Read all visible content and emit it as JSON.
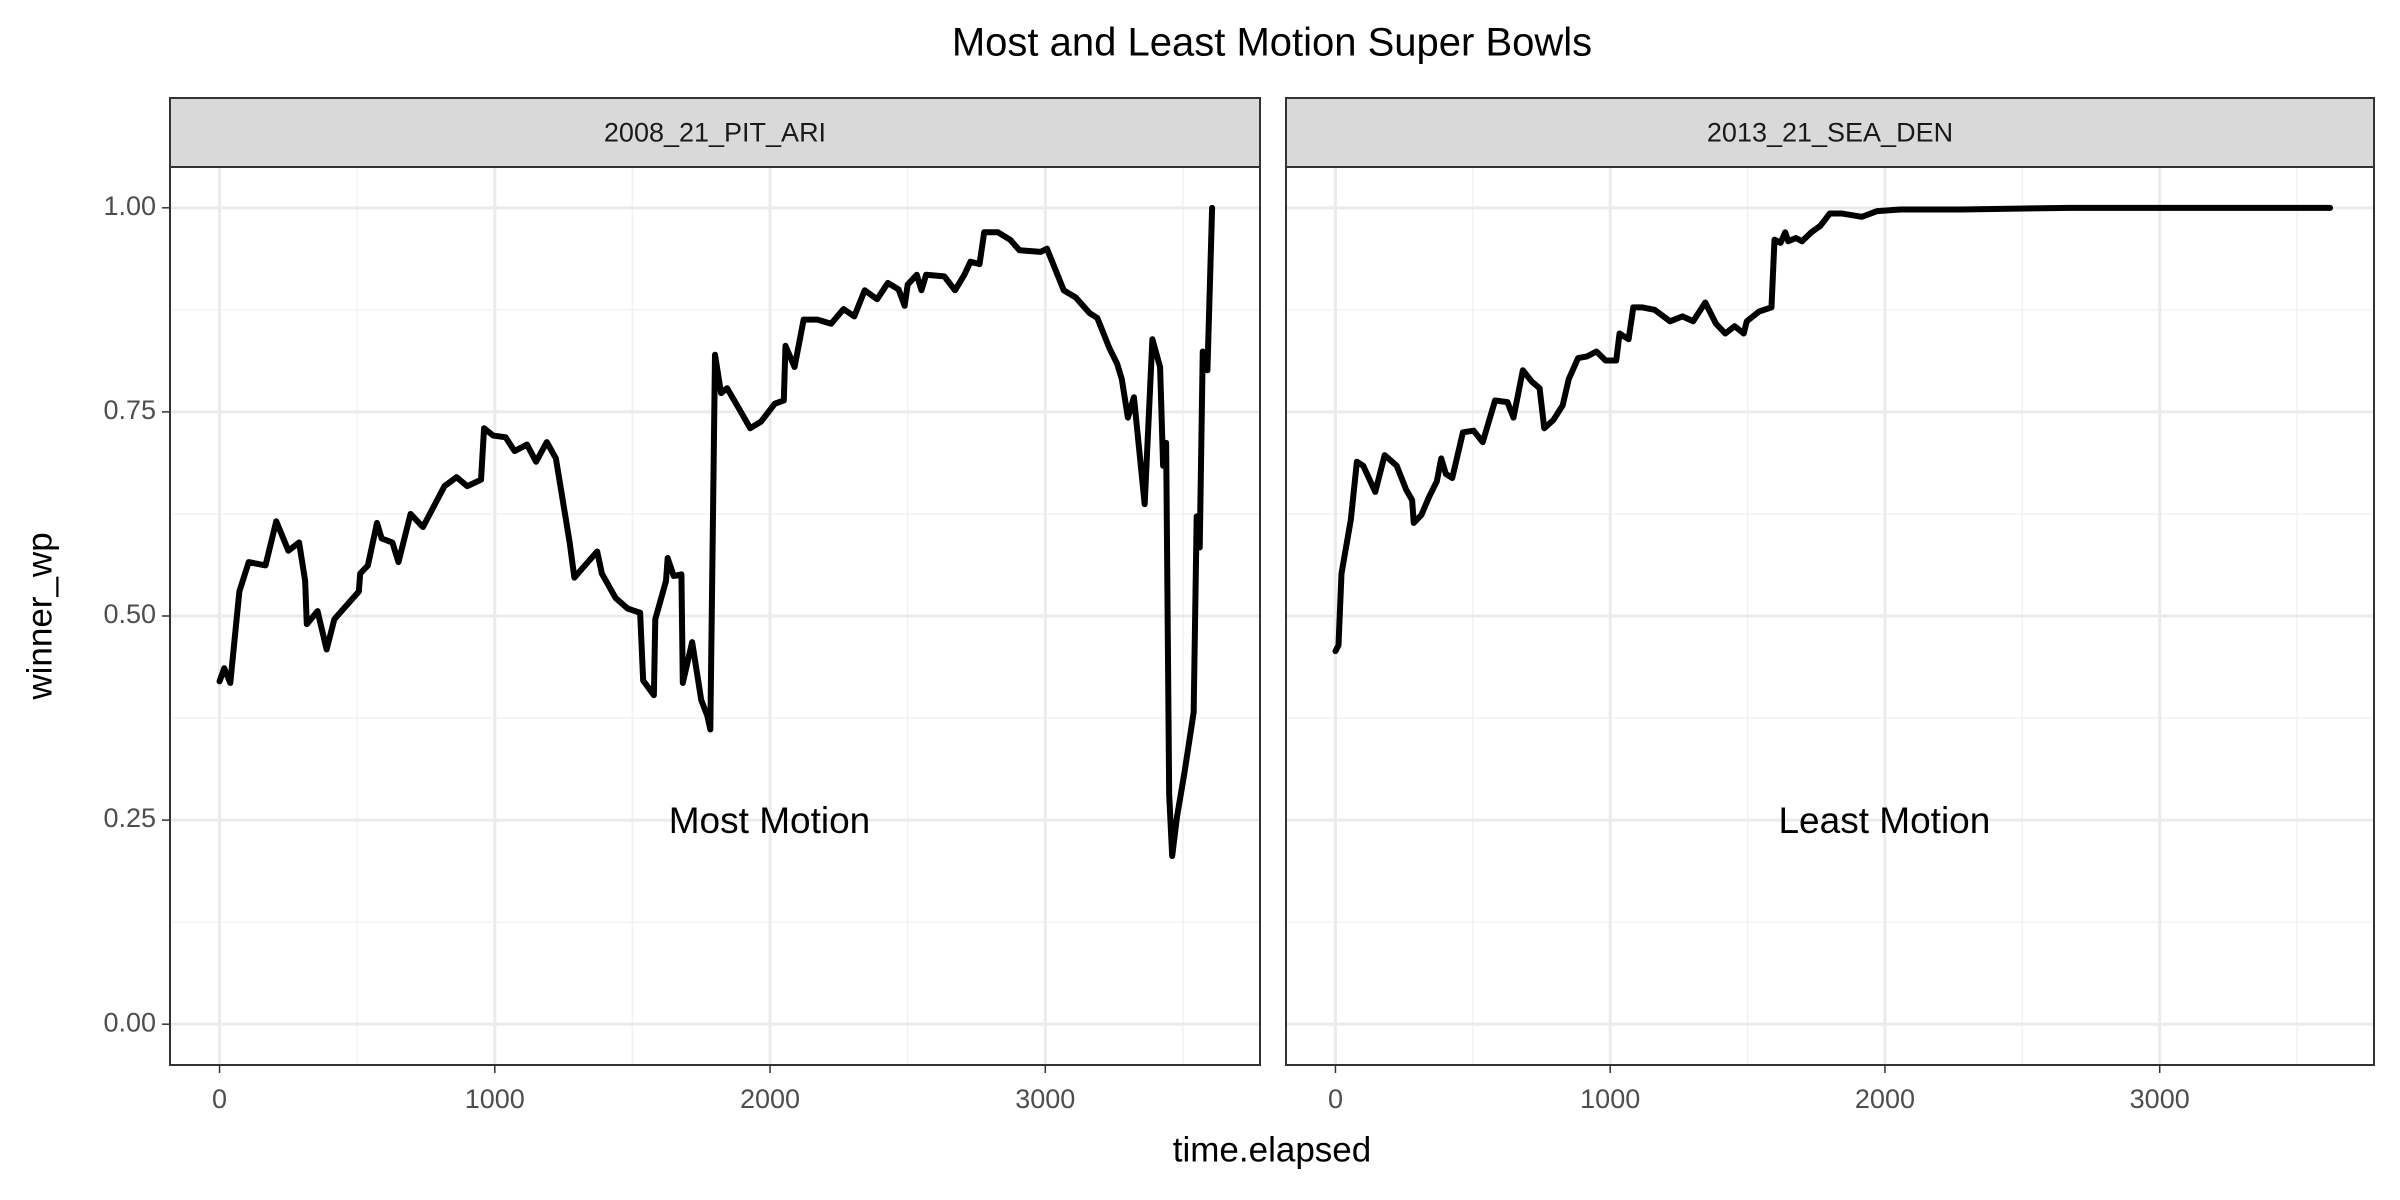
{
  "title": "Most and Least Motion Super Bowls",
  "x_label": "time.elapsed",
  "y_label": "winner_wp",
  "chart_data": [
    {
      "type": "line",
      "facet": "2008_21_PIT_ARI",
      "annotation": "Most Motion",
      "color": "#000000",
      "grid": true,
      "xlim": [
        -180,
        3780
      ],
      "xticks": [
        0,
        1000,
        2000,
        3000
      ],
      "ylim": [
        -0.05,
        1.05
      ],
      "yticks": [
        {
          "value": 0,
          "label": "0.00"
        },
        {
          "value": 0.25,
          "label": "0.25"
        },
        {
          "value": 0.5,
          "label": "0.50"
        },
        {
          "value": 0.75,
          "label": "0.75"
        },
        {
          "value": 1,
          "label": "1.00"
        }
      ],
      "x": [
        0,
        17,
        39,
        72,
        106,
        167,
        206,
        250,
        289,
        311,
        317,
        356,
        389,
        417,
        506,
        511,
        539,
        572,
        589,
        628,
        650,
        694,
        739,
        817,
        861,
        900,
        950,
        961,
        994,
        1039,
        1072,
        1117,
        1150,
        1189,
        1222,
        1272,
        1289,
        1317,
        1372,
        1389,
        1439,
        1483,
        1528,
        1539,
        1578,
        1583,
        1622,
        1628,
        1650,
        1678,
        1683,
        1717,
        1750,
        1772,
        1783,
        1800,
        1822,
        1844,
        1889,
        1928,
        1967,
        2017,
        2050,
        2056,
        2089,
        2122,
        2172,
        2222,
        2267,
        2306,
        2344,
        2389,
        2428,
        2467,
        2489,
        2500,
        2533,
        2550,
        2567,
        2633,
        2672,
        2706,
        2728,
        2761,
        2778,
        2828,
        2872,
        2906,
        2983,
        3006,
        3067,
        3111,
        3161,
        3189,
        3233,
        3261,
        3278,
        3300,
        3322,
        3361,
        3389,
        3417,
        3428,
        3439,
        3450,
        3461,
        3478,
        3506,
        3539,
        3550,
        3561,
        3572,
        3589,
        3606
      ],
      "values": [
        0.42,
        0.436,
        0.418,
        0.53,
        0.566,
        0.562,
        0.616,
        0.58,
        0.59,
        0.543,
        0.49,
        0.506,
        0.459,
        0.496,
        0.53,
        0.552,
        0.562,
        0.614,
        0.595,
        0.59,
        0.566,
        0.625,
        0.609,
        0.659,
        0.67,
        0.659,
        0.667,
        0.73,
        0.721,
        0.719,
        0.702,
        0.71,
        0.689,
        0.713,
        0.693,
        0.59,
        0.547,
        0.558,
        0.579,
        0.552,
        0.522,
        0.509,
        0.504,
        0.421,
        0.403,
        0.496,
        0.543,
        0.571,
        0.549,
        0.551,
        0.418,
        0.468,
        0.397,
        0.378,
        0.361,
        0.82,
        0.773,
        0.779,
        0.753,
        0.73,
        0.738,
        0.76,
        0.764,
        0.831,
        0.805,
        0.863,
        0.863,
        0.858,
        0.876,
        0.867,
        0.899,
        0.888,
        0.908,
        0.9,
        0.88,
        0.906,
        0.918,
        0.899,
        0.918,
        0.916,
        0.899,
        0.918,
        0.934,
        0.931,
        0.97,
        0.97,
        0.961,
        0.948,
        0.946,
        0.95,
        0.899,
        0.89,
        0.871,
        0.865,
        0.828,
        0.809,
        0.79,
        0.743,
        0.768,
        0.637,
        0.839,
        0.805,
        0.684,
        0.712,
        0.281,
        0.206,
        0.253,
        0.309,
        0.382,
        0.622,
        0.584,
        0.824,
        0.801,
        1.0
      ]
    },
    {
      "type": "line",
      "facet": "2013_21_SEA_DEN",
      "annotation": "Least Motion",
      "color": "#000000",
      "grid": true,
      "xlim": [
        -180,
        3780
      ],
      "xticks": [
        0,
        1000,
        2000,
        3000
      ],
      "x": [
        0,
        11,
        22,
        56,
        78,
        101,
        145,
        179,
        223,
        257,
        279,
        285,
        313,
        341,
        369,
        385,
        402,
        425,
        464,
        503,
        536,
        581,
        626,
        648,
        682,
        715,
        743,
        760,
        793,
        827,
        849,
        883,
        916,
        950,
        983,
        1022,
        1034,
        1067,
        1084,
        1117,
        1162,
        1218,
        1263,
        1302,
        1346,
        1385,
        1419,
        1453,
        1486,
        1497,
        1542,
        1587,
        1598,
        1620,
        1637,
        1648,
        1676,
        1698,
        1732,
        1765,
        1799,
        1844,
        1916,
        1972,
        2056,
        2279,
        2670,
        3620
      ],
      "values": [
        0.457,
        0.464,
        0.552,
        0.618,
        0.689,
        0.684,
        0.652,
        0.697,
        0.684,
        0.655,
        0.642,
        0.614,
        0.624,
        0.646,
        0.665,
        0.693,
        0.674,
        0.669,
        0.725,
        0.727,
        0.713,
        0.764,
        0.762,
        0.743,
        0.801,
        0.787,
        0.779,
        0.73,
        0.74,
        0.758,
        0.79,
        0.816,
        0.818,
        0.824,
        0.813,
        0.813,
        0.846,
        0.839,
        0.878,
        0.878,
        0.875,
        0.861,
        0.867,
        0.861,
        0.884,
        0.858,
        0.846,
        0.855,
        0.846,
        0.861,
        0.873,
        0.878,
        0.961,
        0.957,
        0.97,
        0.959,
        0.963,
        0.959,
        0.97,
        0.978,
        0.993,
        0.993,
        0.989,
        0.996,
        0.998,
        0.998,
        1.0,
        1.0
      ]
    }
  ]
}
